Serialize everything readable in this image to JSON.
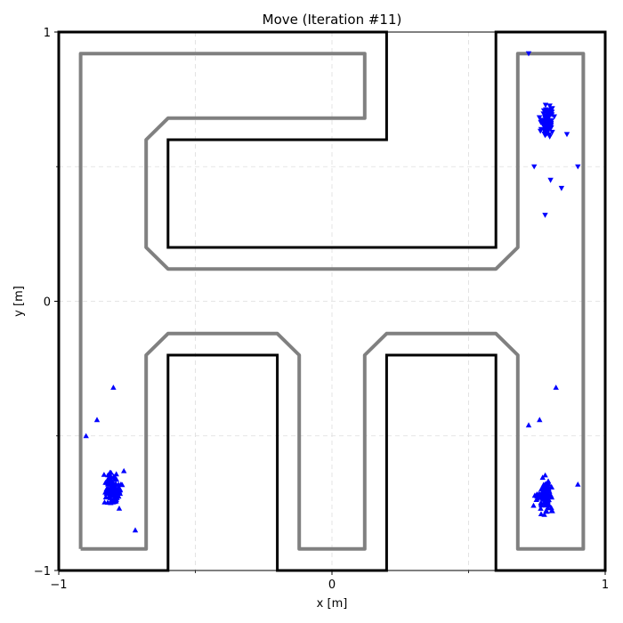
{
  "chart_data": {
    "type": "scatter",
    "title": "Move (Iteration #11)",
    "xlabel": "x [m]",
    "ylabel": "y [m]",
    "xlim": [
      -1,
      1
    ],
    "ylim": [
      -1,
      1
    ],
    "xticks": [
      {
        "value": -1,
        "label": "−1"
      },
      {
        "value": 0,
        "label": "0"
      },
      {
        "value": 1,
        "label": "1"
      }
    ],
    "yticks": [
      {
        "value": -1,
        "label": "−1"
      },
      {
        "value": 0,
        "label": "0"
      },
      {
        "value": 1,
        "label": "1"
      }
    ],
    "grid": true,
    "grid_step": 0.5,
    "colors": {
      "wall": "#000000",
      "inflated_boundary": "#808080",
      "particles": "#0000ff",
      "grid": "#dddddd"
    },
    "walls": [
      {
        "name": "outer",
        "points": [
          [
            -1,
            -1
          ],
          [
            -0.6,
            -1
          ],
          [
            -0.6,
            -0.2
          ],
          [
            -0.2,
            -0.2
          ],
          [
            -0.2,
            -1
          ],
          [
            0.2,
            -1
          ],
          [
            0.2,
            -0.2
          ],
          [
            0.6,
            -0.2
          ],
          [
            0.6,
            -1
          ],
          [
            1,
            -1
          ],
          [
            1,
            1
          ],
          [
            0.6,
            1
          ],
          [
            0.6,
            0.2
          ],
          [
            -0.6,
            0.2
          ],
          [
            -0.6,
            0.6
          ],
          [
            0.2,
            0.6
          ],
          [
            0.2,
            1
          ],
          [
            -1,
            1
          ],
          [
            -1,
            -1
          ]
        ]
      }
    ],
    "inflated_boundaries": [
      {
        "name": "left-region",
        "points": [
          [
            -0.92,
            -0.92
          ],
          [
            -0.68,
            -0.92
          ],
          [
            -0.68,
            -0.2
          ],
          [
            -0.6,
            -0.12
          ],
          [
            -0.2,
            -0.12
          ],
          [
            -0.12,
            -0.2
          ],
          [
            -0.12,
            -0.92
          ],
          [
            0.12,
            -0.92
          ],
          [
            0.12,
            -0.2
          ],
          [
            0.2,
            -0.12
          ],
          [
            0.6,
            -0.12
          ],
          [
            0.68,
            -0.2
          ],
          [
            0.68,
            -0.92
          ],
          [
            0.92,
            -0.92
          ],
          [
            0.92,
            0.92
          ],
          [
            0.68,
            0.92
          ],
          [
            0.68,
            0.2
          ],
          [
            0.6,
            0.12
          ],
          [
            -0.6,
            0.12
          ],
          [
            -0.68,
            0.2
          ],
          [
            -0.68,
            0.6
          ],
          [
            -0.6,
            0.68
          ],
          [
            0.12,
            0.68
          ],
          [
            0.12,
            0.92
          ],
          [
            -0.92,
            0.92
          ],
          [
            -0.92,
            -0.92
          ]
        ]
      }
    ],
    "series": [
      {
        "marker": "triangle-down",
        "cluster": {
          "center": [
            0.79,
            0.66
          ],
          "spread": [
            0.05,
            0.12
          ],
          "count": 90
        },
        "outliers": [
          [
            0.72,
            0.92
          ],
          [
            0.86,
            0.62
          ],
          [
            0.8,
            0.45
          ],
          [
            0.78,
            0.32
          ],
          [
            0.9,
            0.5
          ],
          [
            0.74,
            0.5
          ],
          [
            0.84,
            0.42
          ]
        ]
      },
      {
        "marker": "triangle-up",
        "cluster": {
          "center": [
            -0.8,
            -0.7
          ],
          "spread": [
            0.07,
            0.12
          ],
          "count": 110
        },
        "outliers": [
          [
            -0.8,
            -0.32
          ],
          [
            -0.9,
            -0.5
          ],
          [
            -0.86,
            -0.44
          ],
          [
            -0.72,
            -0.85
          ]
        ]
      },
      {
        "marker": "triangle-up",
        "cluster": {
          "center": [
            0.78,
            -0.72
          ],
          "spread": [
            0.06,
            0.13
          ],
          "count": 110
        },
        "outliers": [
          [
            0.82,
            -0.32
          ],
          [
            0.76,
            -0.44
          ],
          [
            0.72,
            -0.46
          ],
          [
            0.9,
            -0.68
          ]
        ]
      }
    ]
  }
}
